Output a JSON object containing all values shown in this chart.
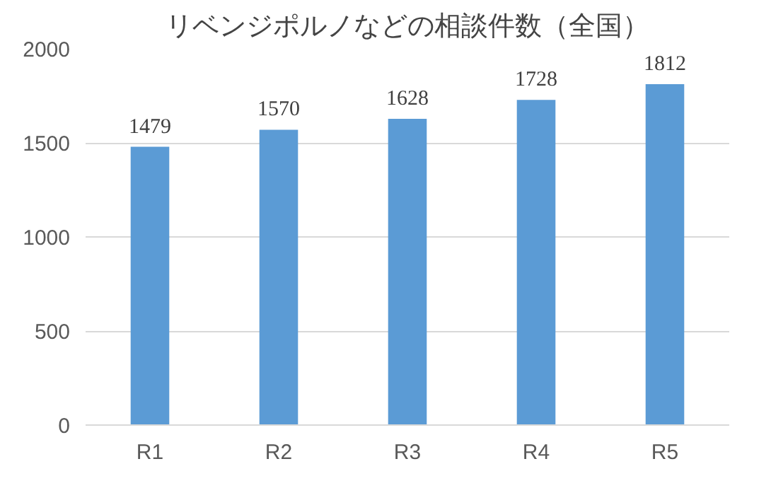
{
  "chart_data": {
    "type": "bar",
    "title": "リベンジポルノなどの相談件数（全国）",
    "categories": [
      "R1",
      "R2",
      "R3",
      "R4",
      "R5"
    ],
    "values": [
      1479,
      1570,
      1628,
      1728,
      1812
    ],
    "color": "#5b9bd5",
    "ylim": [
      0,
      2000
    ],
    "yticks": [
      0,
      500,
      1000,
      1500,
      2000
    ],
    "grid": "y",
    "data_labels": true
  }
}
